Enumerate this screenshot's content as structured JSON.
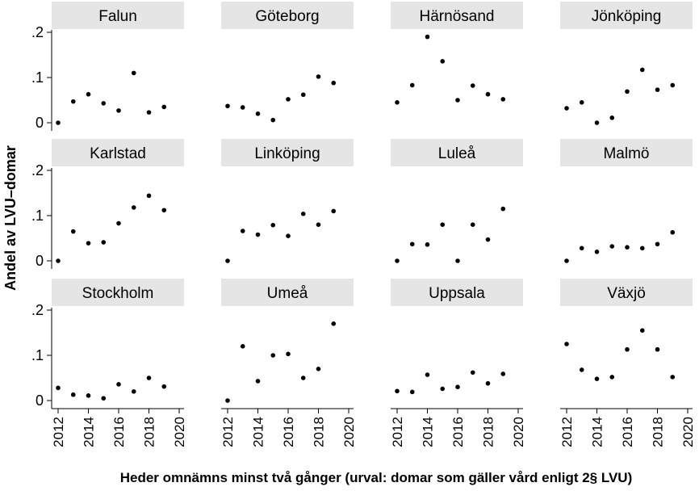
{
  "chart_data": {
    "type": "scatter",
    "ylabel": "Andel av LVU–domar",
    "xlabel": "Heder omnämns minst två gånger (urval: domar som gäller vård enligt 2§ LVU)",
    "xlim": [
      2012,
      2020
    ],
    "ylim": [
      0,
      0.2
    ],
    "xticks": [
      2012,
      2014,
      2016,
      2018,
      2020
    ],
    "xtick_labels": [
      "2012",
      "2014",
      "2016",
      "2018",
      "2020"
    ],
    "yticks": [
      0,
      0.1,
      0.2
    ],
    "ytick_labels": [
      "0",
      ".1",
      ".2"
    ],
    "grid": false,
    "marker_color": "#000000",
    "panel_header_color": "#e5e5e5",
    "x": [
      2012,
      2013,
      2014,
      2015,
      2016,
      2017,
      2018,
      2019
    ],
    "panels": [
      {
        "title": "Falun",
        "values": [
          0,
          0.047,
          0.063,
          0.043,
          0.027,
          0.11,
          0.023,
          0.035
        ]
      },
      {
        "title": "Göteborg",
        "values": [
          0.037,
          0.034,
          0.02,
          0.006,
          0.052,
          0.062,
          0.102,
          0.088
        ]
      },
      {
        "title": "Härnösand",
        "values": [
          0.045,
          0.083,
          0.19,
          0.136,
          0.05,
          0.082,
          0.063,
          0.052
        ]
      },
      {
        "title": "Jönköping",
        "values": [
          0.032,
          0.045,
          0,
          0.011,
          0.069,
          0.117,
          0.073,
          0.083
        ]
      },
      {
        "title": "Karlstad",
        "values": [
          0,
          0.065,
          0.039,
          0.041,
          0.083,
          0.118,
          0.144,
          0.112
        ]
      },
      {
        "title": "Linköping",
        "values": [
          0,
          0.066,
          0.058,
          0.079,
          0.055,
          0.104,
          0.08,
          0.11
        ]
      },
      {
        "title": "Luleå",
        "values": [
          0,
          0.037,
          0.036,
          0.08,
          0,
          0.08,
          0.047,
          0.115
        ]
      },
      {
        "title": "Malmö",
        "values": [
          0,
          0.028,
          0.02,
          0.032,
          0.03,
          0.028,
          0.037,
          0.063
        ]
      },
      {
        "title": "Stockholm",
        "values": [
          0.028,
          0.013,
          0.011,
          0.005,
          0.036,
          0.02,
          0.05,
          0.031
        ]
      },
      {
        "title": "Umeå",
        "values": [
          0,
          0.12,
          0.043,
          0.1,
          0.103,
          0.05,
          0.07,
          0.17
        ]
      },
      {
        "title": "Uppsala",
        "values": [
          0.021,
          0.019,
          0.057,
          0.026,
          0.03,
          0.062,
          0.038,
          0.059
        ]
      },
      {
        "title": "Växjö",
        "values": [
          0.125,
          0.068,
          0.048,
          0.052,
          0.113,
          0.155,
          0.113,
          0.052
        ]
      }
    ]
  }
}
